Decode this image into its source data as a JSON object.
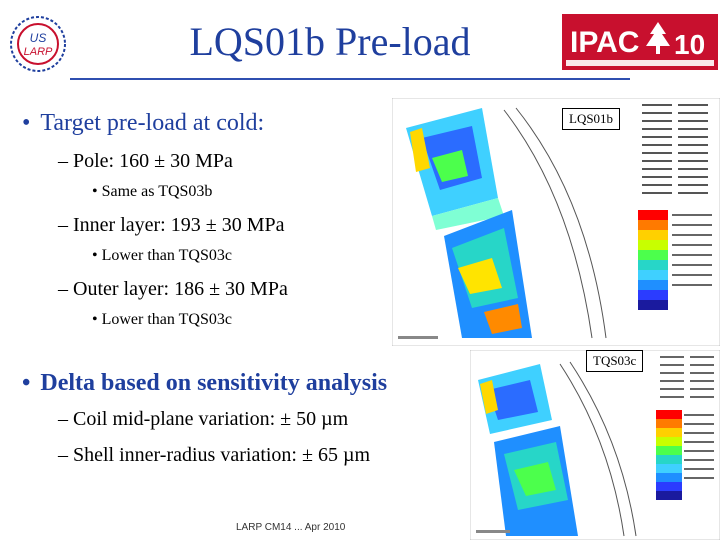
{
  "header": {
    "title": "LQS01b Pre-load",
    "logo_left_text": "US LARP",
    "logo_right_text": "IPAC",
    "logo_right_number": "10"
  },
  "bullets": {
    "b1": "Target pre-load at cold:",
    "pole": "– Pole: 160 ± 30 MPa",
    "pole_note": "• Same as TQS03b",
    "inner": "– Inner layer: 193 ± 30 MPa",
    "inner_note": "• Lower than TQS03c",
    "outer": "– Outer layer: 186 ± 30 MPa",
    "outer_note": "• Lower than TQS03c",
    "b2": "Delta based on sensitivity analysis",
    "coil": "– Coil mid-plane variation: ± 50 µm",
    "shell": "– Shell inner-radius variation: ± 65 µm"
  },
  "figures": {
    "top_label": "LQS01b",
    "bottom_label": "TQS03c"
  },
  "footer": {
    "text": "LARP CM14 ... Apr 2010"
  },
  "colors": {
    "title": "#1f3f9e",
    "ipac_red": "#c8102e"
  }
}
